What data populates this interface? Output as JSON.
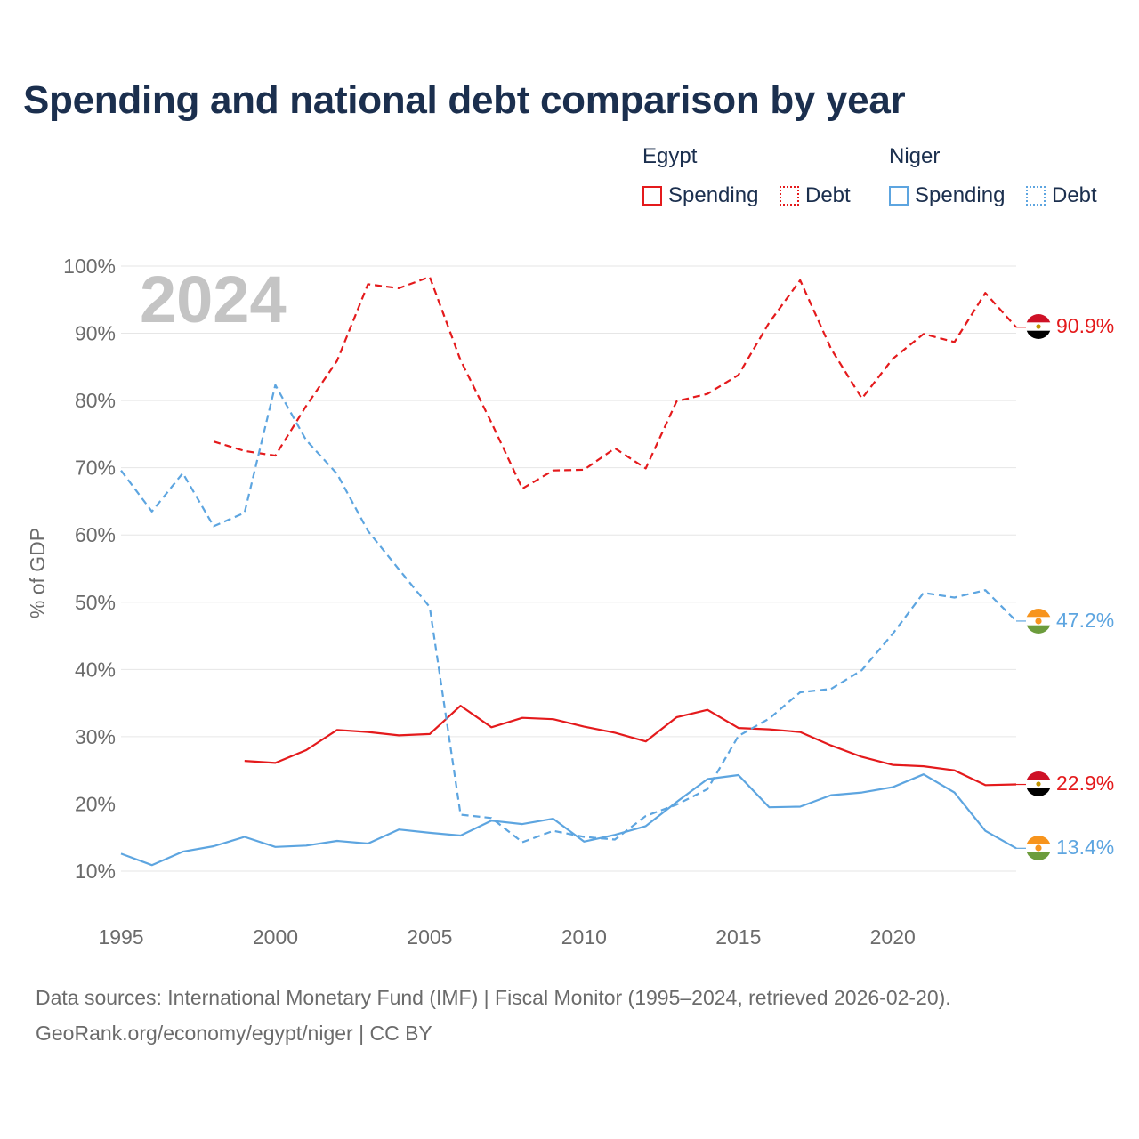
{
  "title": "Spending and national debt comparison by year",
  "legend": {
    "groups": [
      {
        "name": "Egypt",
        "color": "#e41a1c",
        "items": [
          {
            "label": "Spending",
            "style": "solid"
          },
          {
            "label": "Debt",
            "style": "dotted"
          }
        ]
      },
      {
        "name": "Niger",
        "color": "#5da5e0",
        "items": [
          {
            "label": "Spending",
            "style": "solid"
          },
          {
            "label": "Debt",
            "style": "dotted"
          }
        ]
      }
    ]
  },
  "chart_data": {
    "type": "line",
    "title": "Spending and national debt comparison by year",
    "year_watermark": "2024",
    "xlabel": "",
    "ylabel": "% of GDP",
    "xlim": [
      1995,
      2024
    ],
    "ylim": [
      5,
      100
    ],
    "x_ticks": [
      1995,
      2000,
      2005,
      2010,
      2015,
      2020
    ],
    "y_ticks": [
      10,
      20,
      30,
      40,
      50,
      60,
      70,
      80,
      90,
      100
    ],
    "y_tick_labels": [
      "10%",
      "20%",
      "30%",
      "40%",
      "50%",
      "60%",
      "70%",
      "80%",
      "90%",
      "100%"
    ],
    "grid": true,
    "series": [
      {
        "name": "Egypt Debt",
        "country": "Egypt",
        "metric": "Debt",
        "color": "#e41a1c",
        "dashed": true,
        "end_label": "90.9%",
        "x": [
          1998,
          1999,
          2000,
          2001,
          2002,
          2003,
          2004,
          2005,
          2006,
          2007,
          2008,
          2009,
          2010,
          2011,
          2012,
          2013,
          2014,
          2015,
          2016,
          2017,
          2018,
          2019,
          2020,
          2021,
          2022,
          2023,
          2024
        ],
        "values": [
          73.9,
          72.5,
          71.8,
          79.2,
          85.9,
          97.3,
          96.7,
          98.4,
          86.0,
          76.7,
          66.9,
          69.6,
          69.7,
          72.9,
          69.9,
          79.9,
          81.0,
          83.8,
          91.6,
          97.9,
          87.7,
          80.3,
          86.2,
          89.9,
          88.7,
          96.0,
          90.9
        ]
      },
      {
        "name": "Egypt Spending",
        "country": "Egypt",
        "metric": "Spending",
        "color": "#e41a1c",
        "dashed": false,
        "end_label": "22.9%",
        "x": [
          1999,
          2000,
          2001,
          2002,
          2003,
          2004,
          2005,
          2006,
          2007,
          2008,
          2009,
          2010,
          2011,
          2012,
          2013,
          2014,
          2015,
          2016,
          2017,
          2018,
          2019,
          2020,
          2021,
          2022,
          2023,
          2024
        ],
        "values": [
          26.4,
          26.1,
          28.0,
          31.0,
          30.7,
          30.2,
          30.4,
          34.6,
          31.4,
          32.8,
          32.6,
          31.5,
          30.6,
          29.3,
          32.9,
          34.0,
          31.3,
          31.1,
          30.7,
          28.7,
          27.0,
          25.8,
          25.6,
          25.0,
          22.8,
          22.9
        ]
      },
      {
        "name": "Niger Debt",
        "country": "Niger",
        "metric": "Debt",
        "color": "#5da5e0",
        "dashed": true,
        "end_label": "47.2%",
        "x": [
          1995,
          1996,
          1997,
          1998,
          1999,
          2000,
          2001,
          2002,
          2003,
          2004,
          2005,
          2006,
          2007,
          2008,
          2009,
          2010,
          2011,
          2012,
          2013,
          2014,
          2015,
          2016,
          2017,
          2018,
          2019,
          2020,
          2021,
          2022,
          2023,
          2024
        ],
        "values": [
          69.6,
          63.5,
          69.2,
          61.3,
          63.3,
          82.3,
          74.1,
          69.1,
          60.6,
          54.9,
          49.3,
          18.4,
          17.9,
          14.3,
          16.0,
          15.1,
          14.7,
          18.2,
          19.9,
          22.2,
          30.1,
          32.7,
          36.6,
          37.1,
          39.9,
          45.3,
          51.4,
          50.7,
          51.8,
          47.2
        ]
      },
      {
        "name": "Niger Spending",
        "country": "Niger",
        "metric": "Spending",
        "color": "#5da5e0",
        "dashed": false,
        "end_label": "13.4%",
        "x": [
          1995,
          1996,
          1997,
          1998,
          1999,
          2000,
          2001,
          2002,
          2003,
          2004,
          2005,
          2006,
          2007,
          2008,
          2009,
          2010,
          2011,
          2012,
          2013,
          2014,
          2015,
          2016,
          2017,
          2018,
          2019,
          2020,
          2021,
          2022,
          2023,
          2024
        ],
        "values": [
          12.6,
          10.9,
          12.9,
          13.7,
          15.1,
          13.6,
          13.8,
          14.5,
          14.1,
          16.2,
          15.7,
          15.3,
          17.5,
          17.0,
          17.8,
          14.4,
          15.4,
          16.7,
          20.3,
          23.7,
          24.3,
          19.5,
          19.6,
          21.3,
          21.7,
          22.5,
          24.4,
          21.7,
          16.0,
          13.4
        ]
      }
    ]
  },
  "footer": {
    "sources": "Data sources: International Monetary Fund (IMF) | Fiscal Monitor (1995–2024, retrieved 2026-02-20).",
    "credit": "GeoRank.org/economy/egypt/niger | CC BY"
  },
  "colors": {
    "title": "#1b2f4e",
    "egypt": "#e41a1c",
    "niger": "#5da5e0",
    "grid": "#e6e6e6",
    "axis_text": "#6b6b6b",
    "watermark": "#c4c4c4"
  }
}
